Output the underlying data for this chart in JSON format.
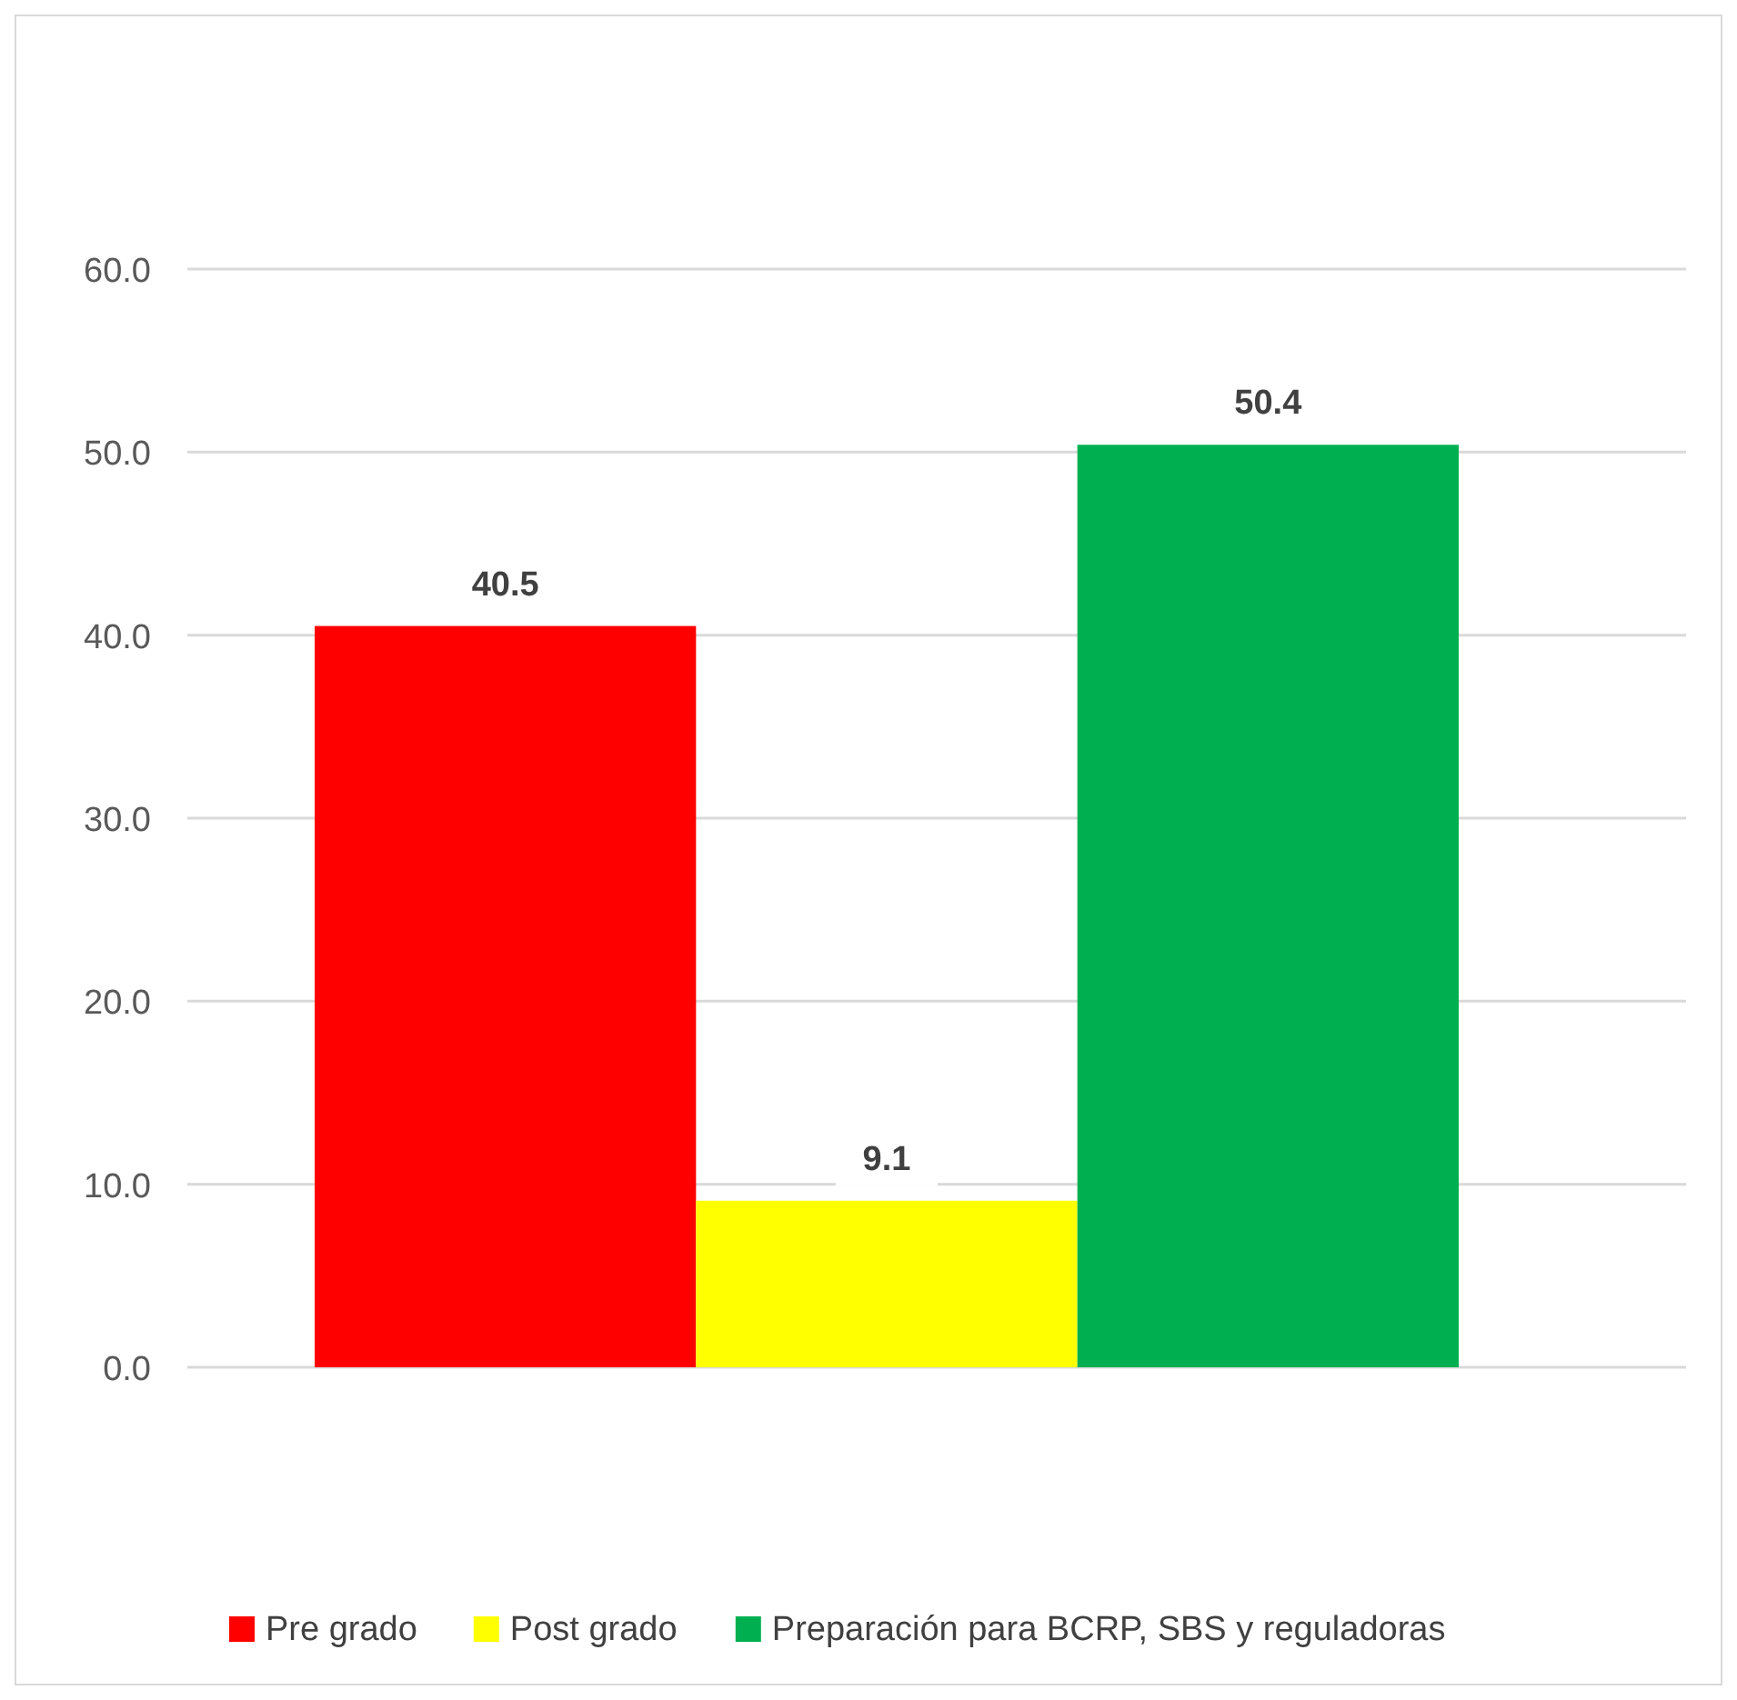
{
  "chart_data": {
    "type": "bar",
    "categories": [
      null
    ],
    "series": [
      {
        "name": "Pre grado",
        "color": "#ff0000",
        "values": [
          40.5
        ]
      },
      {
        "name": "Post grado",
        "color": "#ffff00",
        "values": [
          9.1
        ]
      },
      {
        "name": "Preparación para BCRP, SBS  y reguladoras",
        "color": "#00b050",
        "values": [
          50.4
        ]
      }
    ],
    "ylim": [
      0,
      60
    ],
    "yticks": [
      {
        "value": 0,
        "label": "0.0"
      },
      {
        "value": 10,
        "label": "10.0"
      },
      {
        "value": 20,
        "label": "20.0"
      },
      {
        "value": 30,
        "label": "30.0"
      },
      {
        "value": 40,
        "label": "40.0"
      },
      {
        "value": 50,
        "label": "50.0"
      },
      {
        "value": 60,
        "label": "60.0"
      }
    ],
    "grid": "y",
    "legend": "bottom",
    "data_labels": true
  }
}
